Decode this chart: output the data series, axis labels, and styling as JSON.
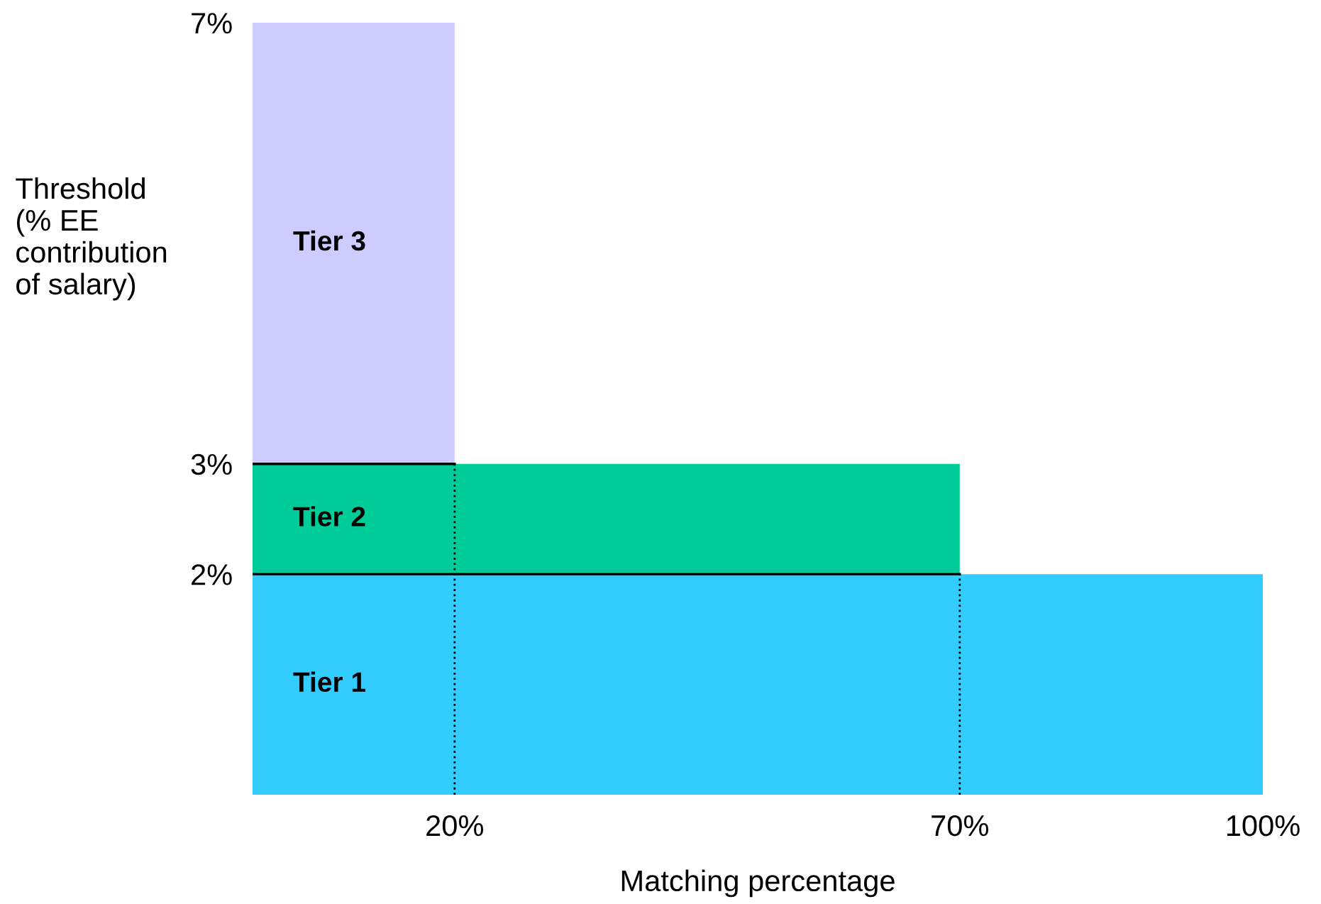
{
  "chart_data": {
    "type": "area",
    "stacked": true,
    "xlabel": "Matching percentage",
    "ylabel": "Threshold\n(% EE\ncontribution\nof salary)",
    "xlim": [
      0,
      100
    ],
    "ylim": [
      0,
      7
    ],
    "xticks": [
      {
        "value": 20,
        "label": "20%"
      },
      {
        "value": 70,
        "label": "70%"
      },
      {
        "value": 100,
        "label": "100%"
      }
    ],
    "yticks": [
      {
        "value": 2,
        "label": "2%"
      },
      {
        "value": 3,
        "label": "3%"
      },
      {
        "value": 7,
        "label": "7%"
      }
    ],
    "ref_lines": [
      {
        "axis": "x",
        "value": 20,
        "color": "#000000",
        "line_style": "dotted"
      },
      {
        "axis": "x",
        "value": 70,
        "color": "#000000",
        "line_style": "dotted"
      }
    ],
    "series": [
      {
        "name": "Tier 1",
        "color": "#33ccff",
        "x": [
          0,
          100
        ],
        "values": [
          2,
          2
        ]
      },
      {
        "name": "Tier 2",
        "color": "#00cc99",
        "x": [
          0,
          70
        ],
        "values": [
          1,
          1
        ]
      },
      {
        "name": "Tier 3",
        "color": "#ccccff",
        "x": [
          0,
          20
        ],
        "values": [
          4,
          4
        ]
      }
    ]
  }
}
